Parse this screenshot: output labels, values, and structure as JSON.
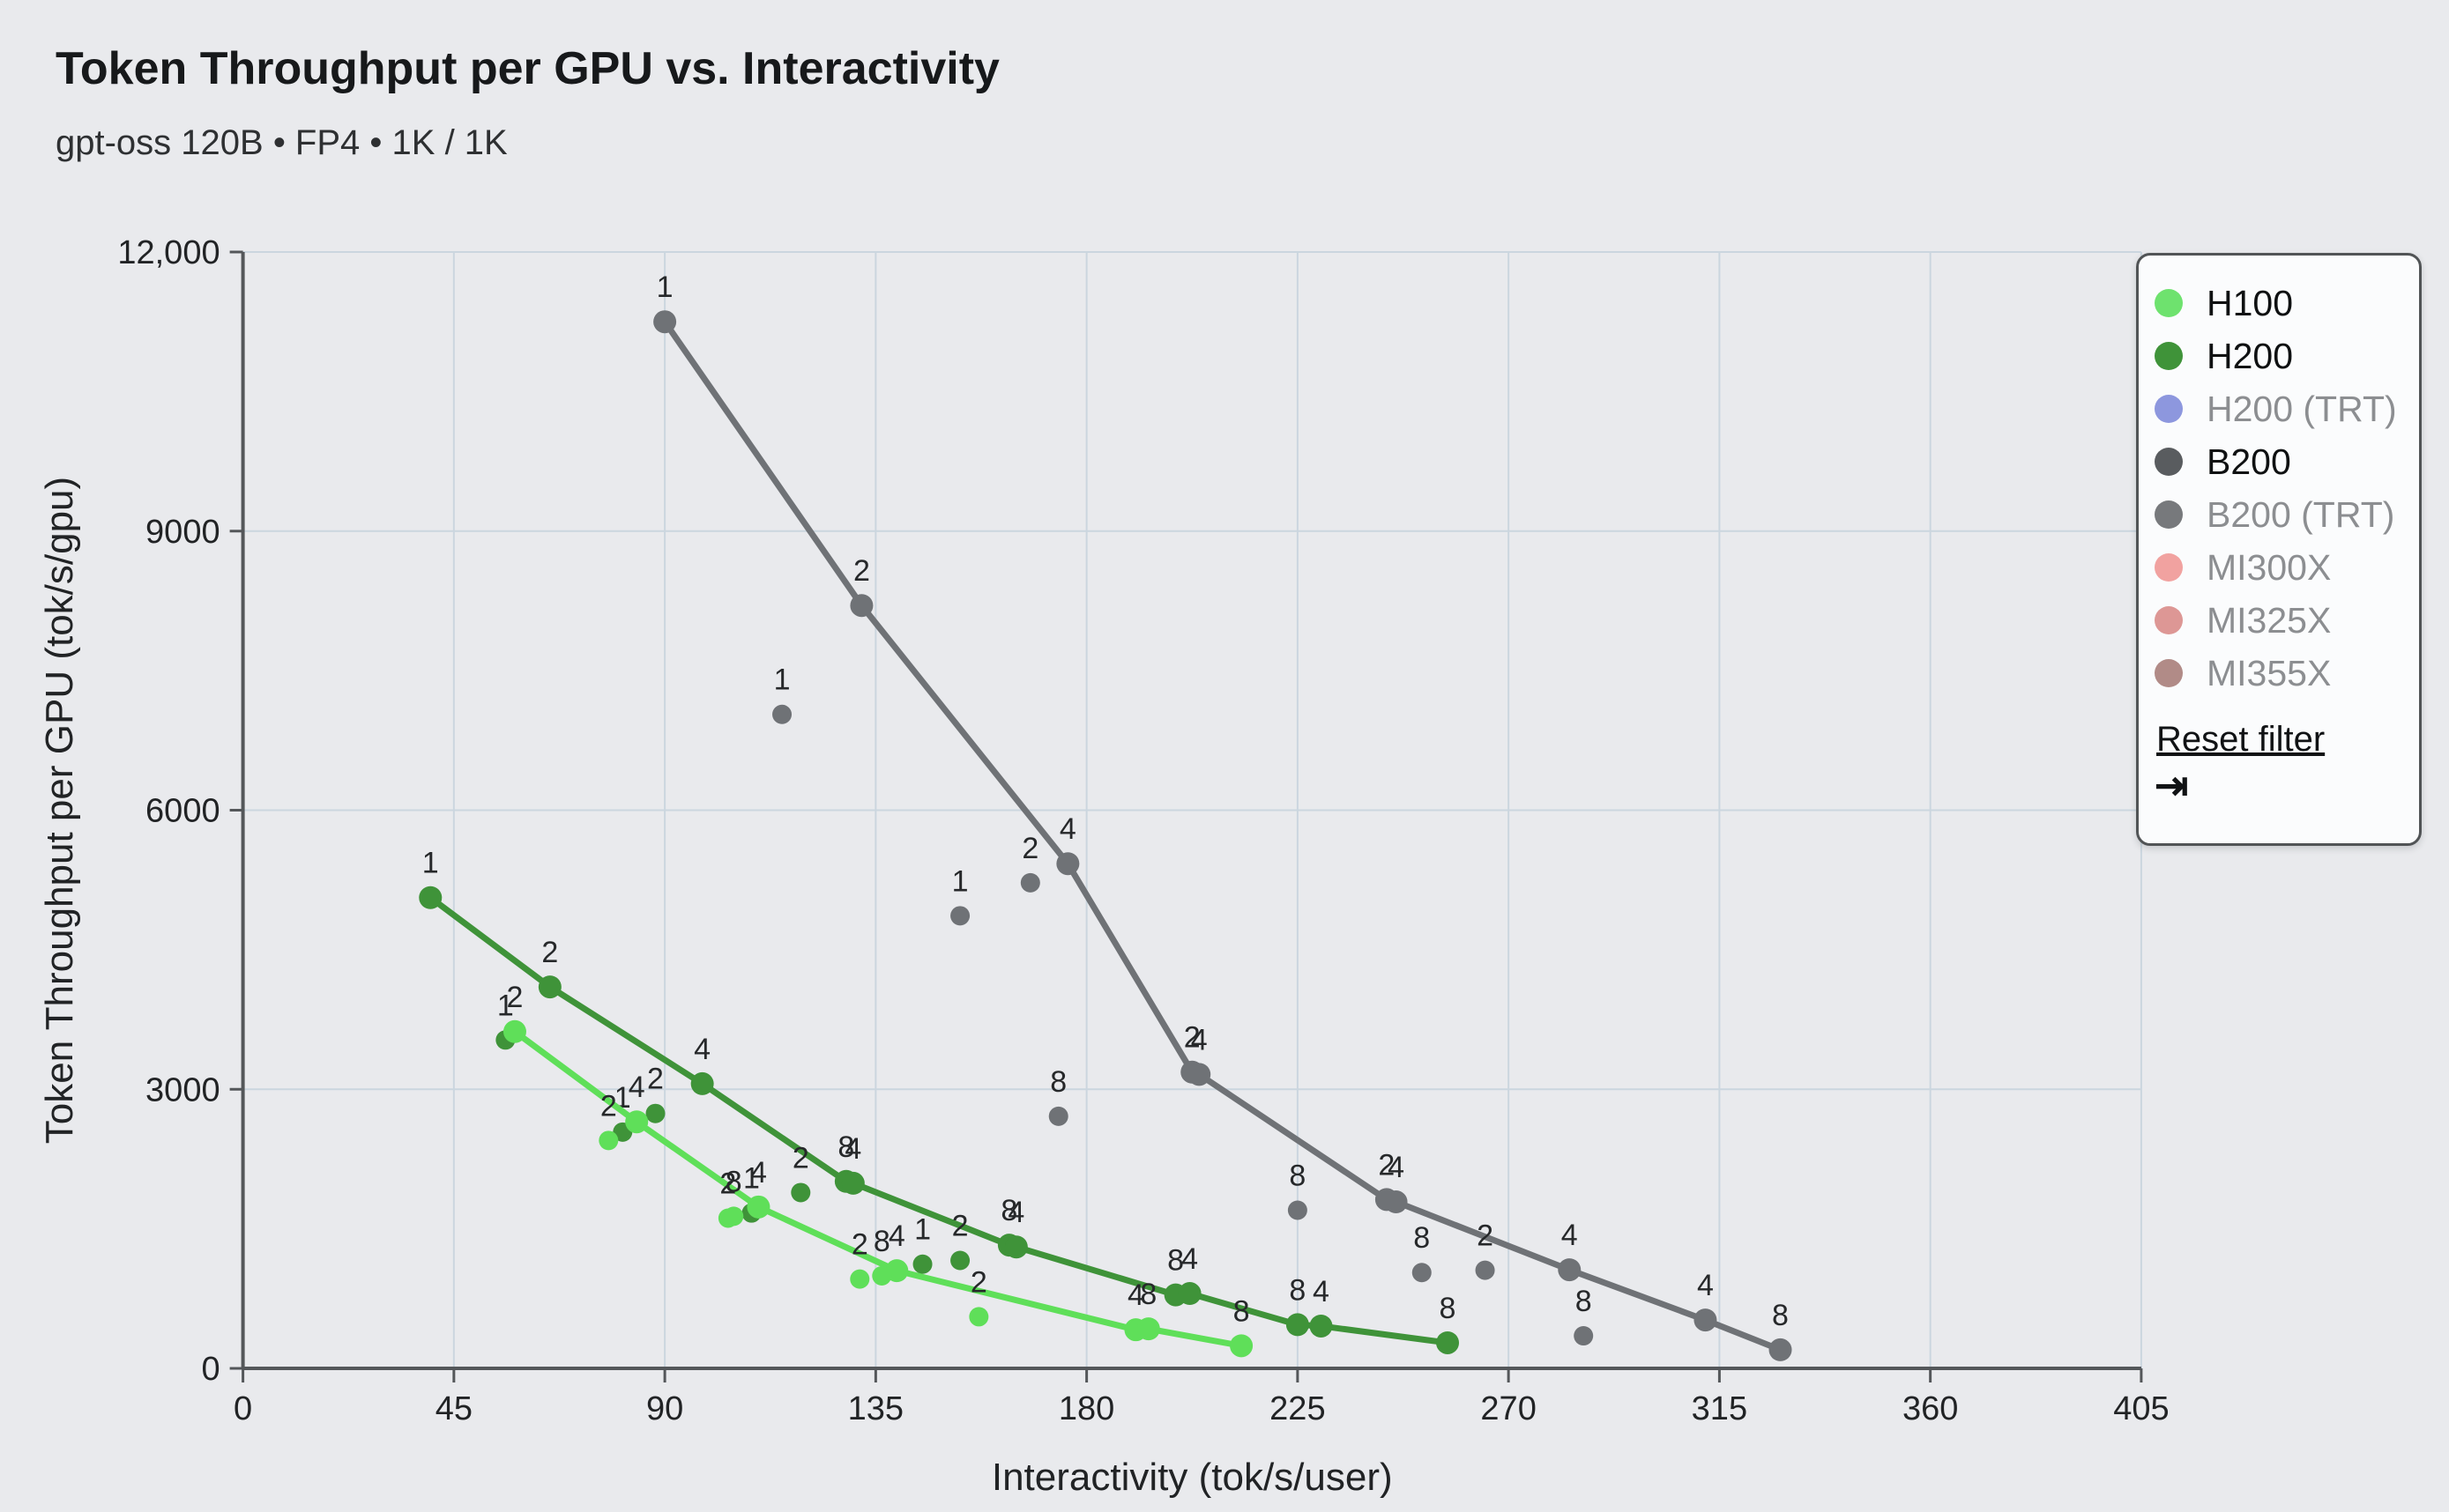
{
  "header": {
    "title": "Token Throughput per GPU vs. Interactivity",
    "subtitle": "gpt-oss 120B • FP4 • 1K / 1K"
  },
  "chart_data": {
    "type": "scatter",
    "title": "Token Throughput per GPU vs. Interactivity",
    "xlabel": "Interactivity (tok/s/user)",
    "ylabel": "Token Throughput per GPU (tok/s/gpu)",
    "xlim": [
      0,
      405
    ],
    "ylim": [
      0,
      12000
    ],
    "xticks": [
      0,
      45,
      90,
      135,
      180,
      225,
      270,
      315,
      360,
      405
    ],
    "yticks": [
      0,
      3000,
      6000,
      9000,
      12000
    ],
    "ytick_labels": [
      "0",
      "3000",
      "6000",
      "9000",
      "12,000"
    ],
    "grid": true,
    "legend_position": "top-right",
    "point_label_meaning": "number of GPUs",
    "series": [
      {
        "name": "B200",
        "color": "#6f7276",
        "line": [
          {
            "x": 90,
            "y": 11250,
            "gpus": "1"
          },
          {
            "x": 132,
            "y": 8200,
            "gpus": "2"
          },
          {
            "x": 176,
            "y": 5425,
            "gpus": "4"
          },
          {
            "x": 202.5,
            "y": 3185,
            "gpus": "2"
          },
          {
            "x": 204,
            "y": 3160,
            "gpus": "4"
          },
          {
            "x": 244,
            "y": 1815,
            "gpus": "2"
          },
          {
            "x": 246,
            "y": 1790,
            "gpus": "4"
          },
          {
            "x": 283,
            "y": 1060,
            "gpus": "4"
          },
          {
            "x": 312,
            "y": 520,
            "gpus": "4"
          },
          {
            "x": 328,
            "y": 200,
            "gpus": "8"
          }
        ],
        "scatter": [
          {
            "x": 115,
            "y": 7030,
            "gpus": "1"
          },
          {
            "x": 153,
            "y": 4865,
            "gpus": "1"
          },
          {
            "x": 168,
            "y": 5220,
            "gpus": "2"
          },
          {
            "x": 174,
            "y": 2710,
            "gpus": "8"
          },
          {
            "x": 225,
            "y": 1700,
            "gpus": "8"
          },
          {
            "x": 251.5,
            "y": 1030,
            "gpus": "8"
          },
          {
            "x": 265,
            "y": 1055,
            "gpus": "2"
          },
          {
            "x": 286,
            "y": 350,
            "gpus": "8"
          }
        ]
      },
      {
        "name": "H200",
        "color": "#3f9339",
        "line": [
          {
            "x": 40,
            "y": 5060,
            "gpus": "1"
          },
          {
            "x": 65.5,
            "y": 4100,
            "gpus": "2"
          },
          {
            "x": 98,
            "y": 3060,
            "gpus": "4"
          },
          {
            "x": 128.7,
            "y": 2010,
            "gpus": "8"
          },
          {
            "x": 130.2,
            "y": 1990,
            "gpus": "4"
          },
          {
            "x": 163.5,
            "y": 1325,
            "gpus": "8"
          },
          {
            "x": 165,
            "y": 1305,
            "gpus": "4"
          },
          {
            "x": 199,
            "y": 790,
            "gpus": "8"
          },
          {
            "x": 202,
            "y": 805,
            "gpus": "4"
          },
          {
            "x": 225,
            "y": 470,
            "gpus": "8"
          },
          {
            "x": 230,
            "y": 455,
            "gpus": "4"
          },
          {
            "x": 257,
            "y": 275,
            "gpus": "8"
          }
        ],
        "scatter": [
          {
            "x": 56,
            "y": 3530,
            "gpus": "1"
          },
          {
            "x": 81,
            "y": 2540,
            "gpus": "1"
          },
          {
            "x": 88,
            "y": 2740,
            "gpus": "2"
          },
          {
            "x": 108.5,
            "y": 1670,
            "gpus": "1"
          },
          {
            "x": 119,
            "y": 1890,
            "gpus": "2"
          },
          {
            "x": 145,
            "y": 1120,
            "gpus": "1"
          },
          {
            "x": 153,
            "y": 1160,
            "gpus": "2"
          }
        ]
      },
      {
        "name": "H100",
        "color": "#5fdf59",
        "line": [
          {
            "x": 58,
            "y": 3620,
            "gpus": "2"
          },
          {
            "x": 84,
            "y": 2650,
            "gpus": "4"
          },
          {
            "x": 110,
            "y": 1735,
            "gpus": "4"
          },
          {
            "x": 139.5,
            "y": 1050,
            "gpus": "4"
          },
          {
            "x": 190.5,
            "y": 415,
            "gpus": "4"
          },
          {
            "x": 193.2,
            "y": 425,
            "gpus": "8"
          },
          {
            "x": 213,
            "y": 243,
            "gpus": "8"
          }
        ],
        "scatter": [
          {
            "x": 78,
            "y": 2450,
            "gpus": "2"
          },
          {
            "x": 103.5,
            "y": 1615,
            "gpus": "2"
          },
          {
            "x": 104.7,
            "y": 1635,
            "gpus": "8"
          },
          {
            "x": 131.6,
            "y": 960,
            "gpus": "2"
          },
          {
            "x": 136.3,
            "y": 995,
            "gpus": "8"
          },
          {
            "x": 157,
            "y": 555,
            "gpus": "2"
          }
        ]
      }
    ]
  },
  "legend": {
    "items": [
      {
        "label": "H100",
        "color": "#6ee26e",
        "active": true
      },
      {
        "label": "H200",
        "color": "#3f9339",
        "active": true
      },
      {
        "label": "H200 (TRT)",
        "color": "#8d97de",
        "active": false
      },
      {
        "label": "B200",
        "color": "#595c5f",
        "active": true
      },
      {
        "label": "B200 (TRT)",
        "color": "#77797c",
        "active": false
      },
      {
        "label": "MI300X",
        "color": "#f1a2a0",
        "active": false
      },
      {
        "label": "MI325X",
        "color": "#dd9795",
        "active": false
      },
      {
        "label": "MI355X",
        "color": "#b18b87",
        "active": false
      }
    ],
    "reset_label": "Reset filter",
    "collapse_icon": "⇥"
  },
  "style": {
    "background": "#e9eaed",
    "gridline_color": "#cbd6df",
    "axis_color": "#54575a",
    "tick_label_color": "#212325",
    "point_label_color": "#26282a"
  }
}
